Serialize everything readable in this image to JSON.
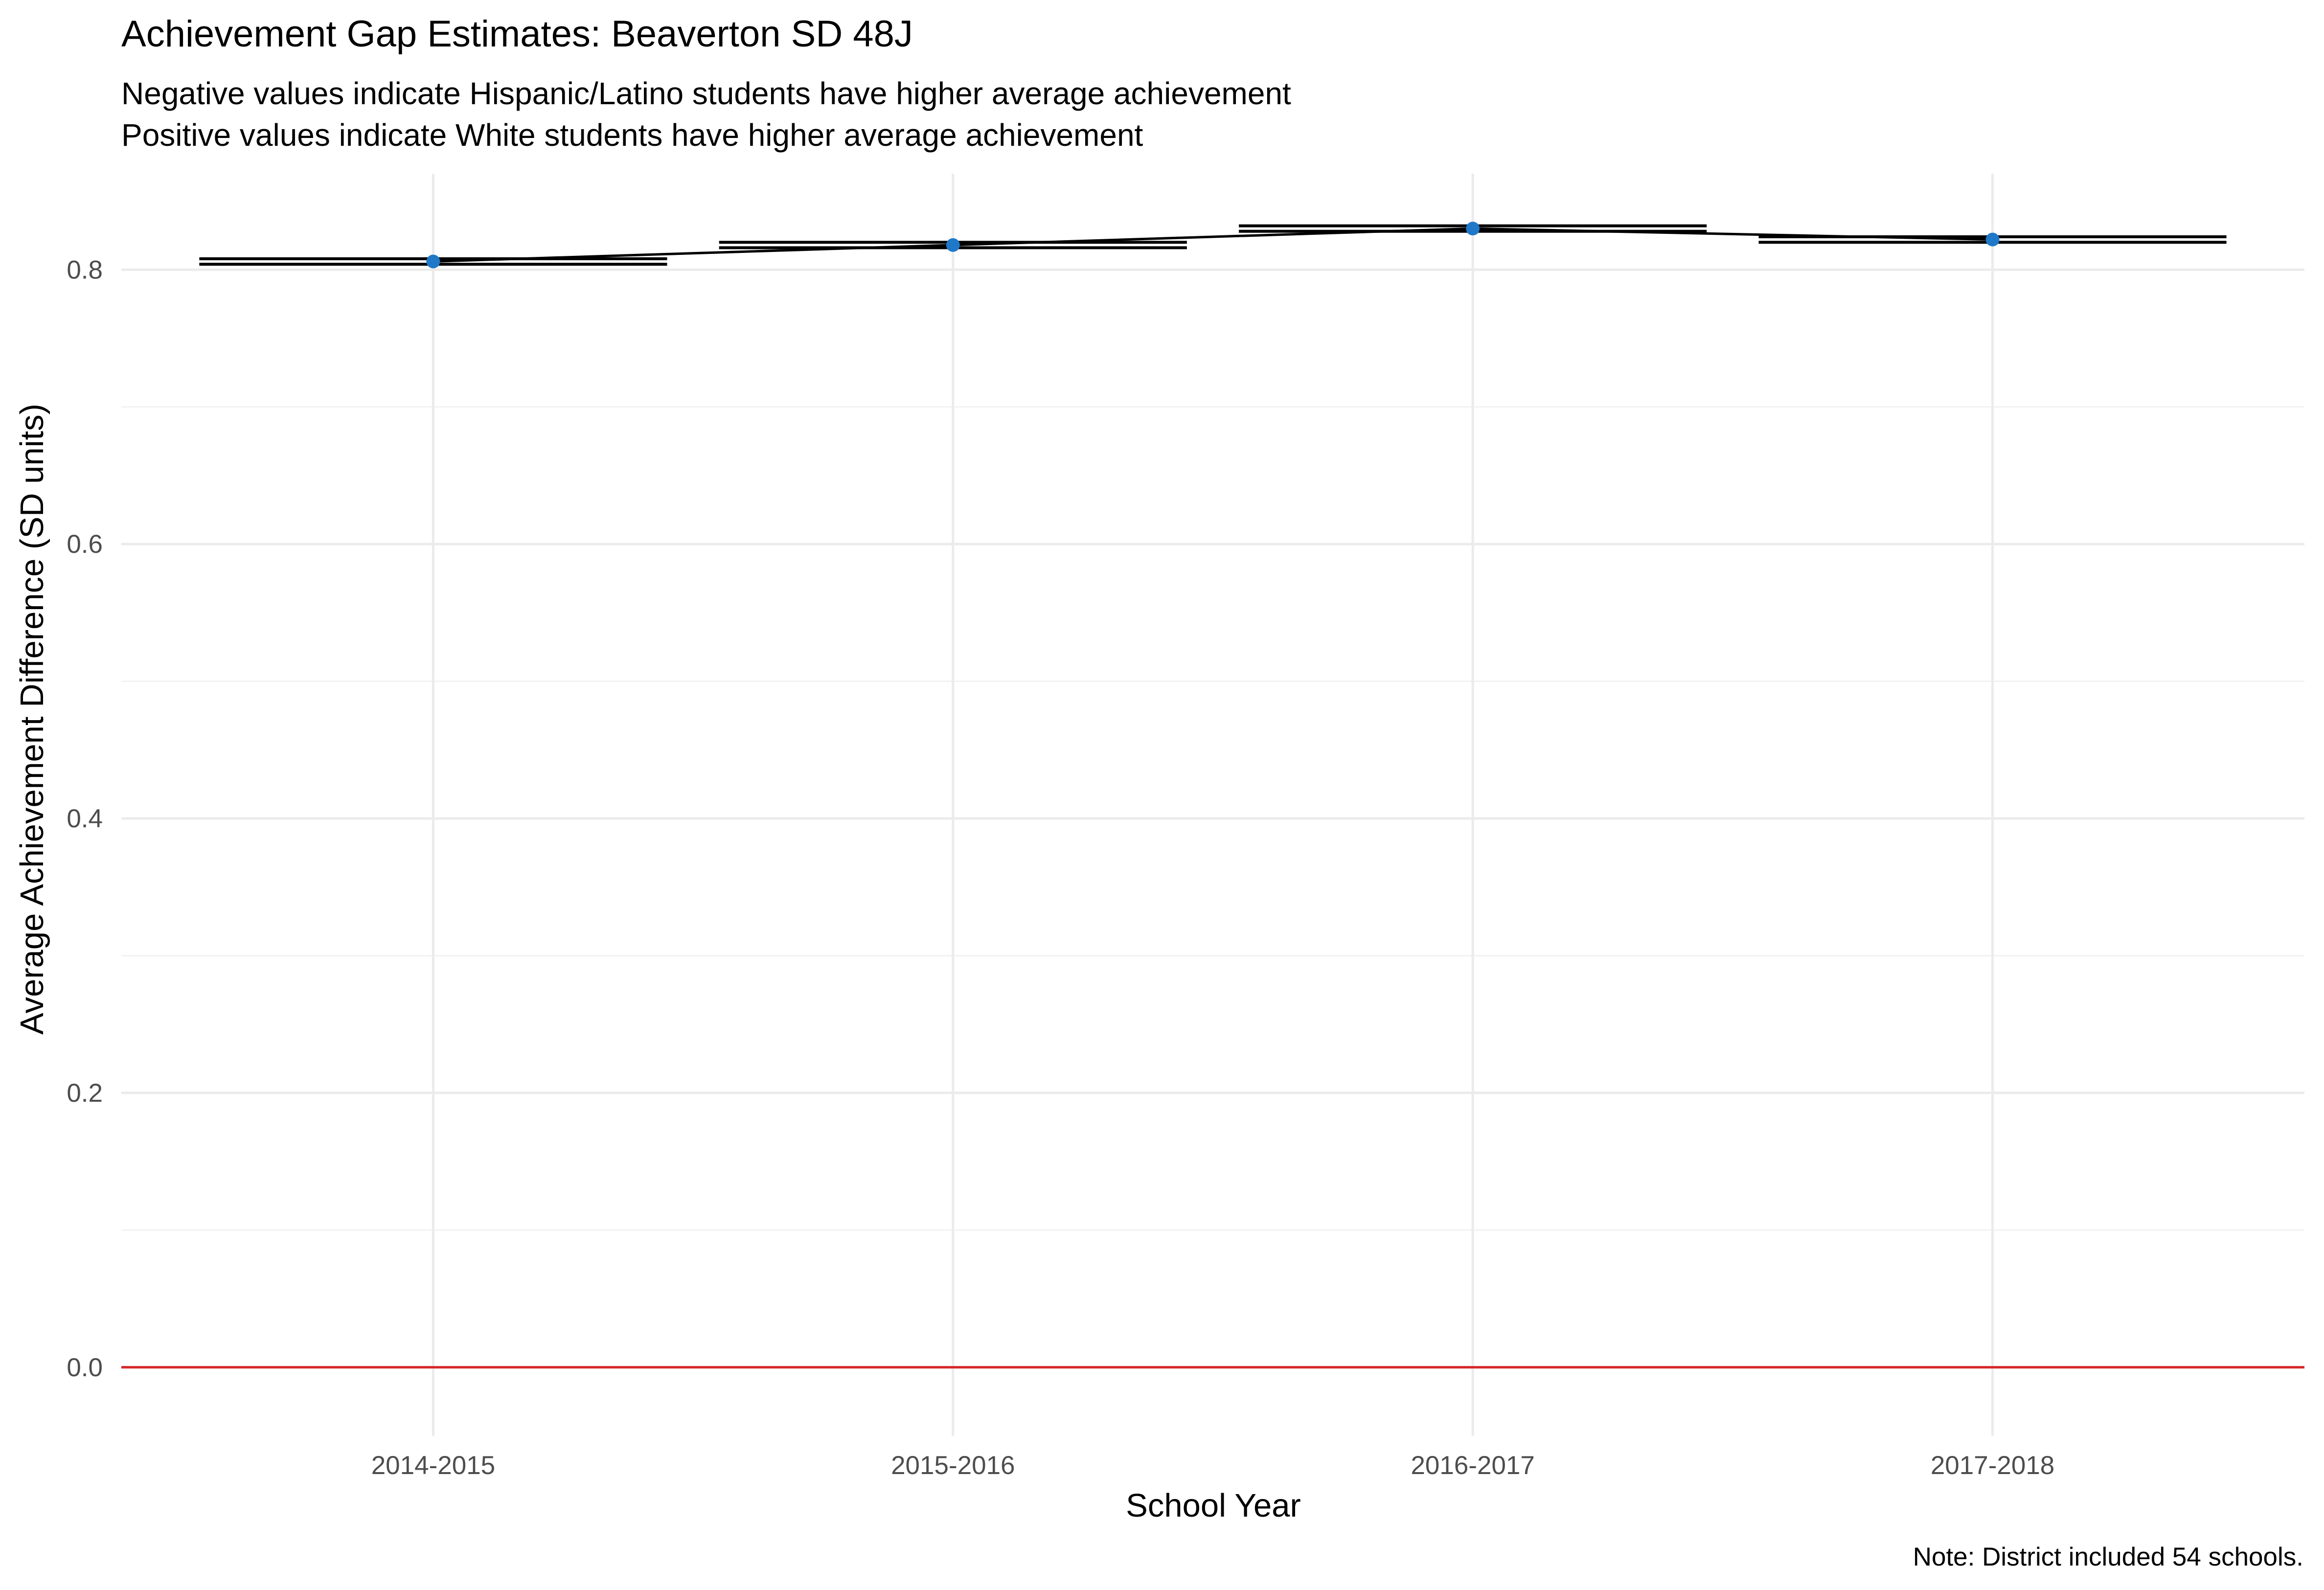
{
  "chart_data": {
    "type": "line",
    "title": "Achievement Gap Estimates: Beaverton SD 48J",
    "subtitle": [
      "Negative values indicate Hispanic/Latino students have higher average achievement",
      "Positive values indicate White students have higher average achievement"
    ],
    "xlabel": "School Year",
    "ylabel": "Average Achievement Difference (SD units)",
    "caption": "Note: District included 54 schools.",
    "categories": [
      "2014-2015",
      "2015-2016",
      "2016-2017",
      "2017-2018"
    ],
    "values": [
      0.806,
      0.818,
      0.83,
      0.822
    ],
    "ci_low": [
      0.804,
      0.816,
      0.828,
      0.82
    ],
    "ci_high": [
      0.808,
      0.82,
      0.832,
      0.824
    ],
    "ylim": [
      -0.05,
      0.87
    ],
    "yticks": [
      0.0,
      0.2,
      0.4,
      0.6,
      0.8
    ],
    "ytick_labels": [
      "0.0",
      "0.2",
      "0.4",
      "0.6",
      "0.8"
    ],
    "reference_line": 0,
    "grid": true,
    "legend": "none",
    "colors": {
      "point": "#1f78c8",
      "line": "#000000",
      "reference_line": "#d62728",
      "grid": "#ebebeb"
    }
  }
}
